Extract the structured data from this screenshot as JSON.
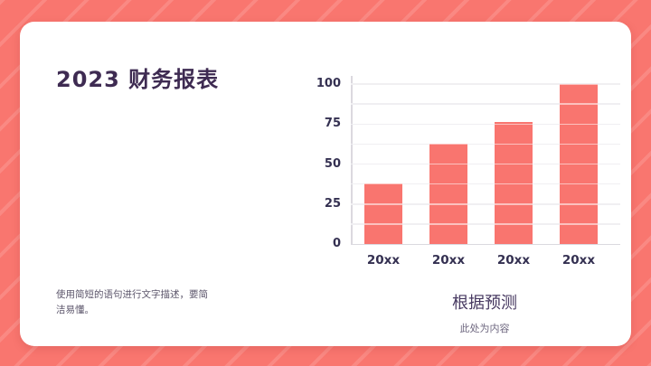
{
  "slide": {
    "title": "2023 财务报表",
    "body_text": "使用简短的语句进行文字描述，要简洁易懂。",
    "caption_title": "根据预测",
    "caption_subtitle": "此处为内容"
  },
  "colors": {
    "background": "#F9766F",
    "background_stripe": "#FA8780",
    "card": "#FFFFFF",
    "bar": "#F9756F",
    "title_text": "#3E2B52",
    "axis_text": "#343051",
    "gridline": "#DEDCE2",
    "muted_text": "#5C566B",
    "caption_text": "#473961"
  },
  "chart_data": {
    "type": "bar",
    "categories": [
      "20xx",
      "20xx",
      "20xx",
      "20xx"
    ],
    "values": [
      38,
      63,
      76,
      100
    ],
    "title": "",
    "xlabel": "",
    "ylabel": "",
    "ylim": [
      0,
      100
    ],
    "yticks": [
      0,
      25,
      50,
      75,
      100
    ],
    "minor_grid_step": 12.5,
    "grid": true,
    "legend": false,
    "bar_color": "#F9756F"
  }
}
